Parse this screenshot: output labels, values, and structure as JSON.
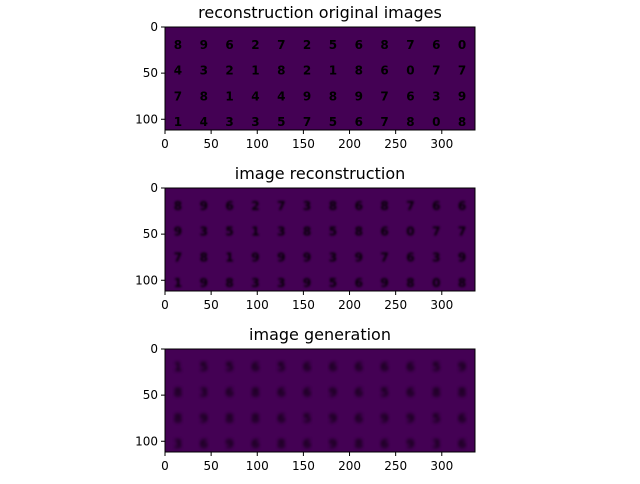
{
  "figure": {
    "colormap": "viridis",
    "background_color": "#440154",
    "panels": [
      {
        "title": "reconstruction original images",
        "style": "crisp",
        "x_ticks": [
          "0",
          "50",
          "100",
          "150",
          "200",
          "250",
          "300"
        ],
        "y_ticks": [
          "0",
          "50",
          "100"
        ],
        "rows": [
          [
            "8",
            "9",
            "6",
            "2",
            "7",
            "2",
            "5",
            "6",
            "8",
            "7",
            "6",
            "0"
          ],
          [
            "4",
            "3",
            "2",
            "1",
            "8",
            "2",
            "1",
            "8",
            "6",
            "0",
            "7",
            "7"
          ],
          [
            "7",
            "8",
            "1",
            "4",
            "4",
            "9",
            "8",
            "9",
            "7",
            "6",
            "3",
            "9"
          ],
          [
            "1",
            "4",
            "3",
            "3",
            "5",
            "7",
            "5",
            "6",
            "7",
            "8",
            "0",
            "8"
          ]
        ]
      },
      {
        "title": "image reconstruction",
        "style": "blurry",
        "x_ticks": [
          "0",
          "50",
          "100",
          "150",
          "200",
          "250",
          "300"
        ],
        "y_ticks": [
          "0",
          "50",
          "100"
        ],
        "rows": [
          [
            "8",
            "9",
            "6",
            "2",
            "7",
            "3",
            "8",
            "6",
            "8",
            "7",
            "6",
            "6"
          ],
          [
            "9",
            "3",
            "5",
            "1",
            "3",
            "8",
            "5",
            "8",
            "6",
            "0",
            "7",
            "7"
          ],
          [
            "7",
            "8",
            "1",
            "9",
            "9",
            "9",
            "3",
            "9",
            "7",
            "6",
            "3",
            "9"
          ],
          [
            "1",
            "9",
            "8",
            "3",
            "3",
            "9",
            "5",
            "6",
            "9",
            "8",
            "0",
            "8"
          ]
        ]
      },
      {
        "title": "image generation",
        "style": "noisy",
        "x_ticks": [
          "0",
          "50",
          "100",
          "150",
          "200",
          "250",
          "300"
        ],
        "y_ticks": [
          "0",
          "50",
          "100"
        ],
        "rows": [
          [
            "1",
            "5",
            "5",
            "6",
            "5",
            "6",
            "6",
            "6",
            "6",
            "6",
            "5",
            "9"
          ],
          [
            "8",
            "3",
            "6",
            "8",
            "6",
            "6",
            "9",
            "6",
            "5",
            "6",
            "8",
            "8"
          ],
          [
            "8",
            "9",
            "8",
            "8",
            "6",
            "5",
            "9",
            "6",
            "9",
            "9",
            "5",
            "6"
          ],
          [
            "3",
            "6",
            "9",
            "6",
            "8",
            "6",
            "9",
            "8",
            "6",
            "9",
            "3",
            "6"
          ]
        ]
      }
    ]
  }
}
